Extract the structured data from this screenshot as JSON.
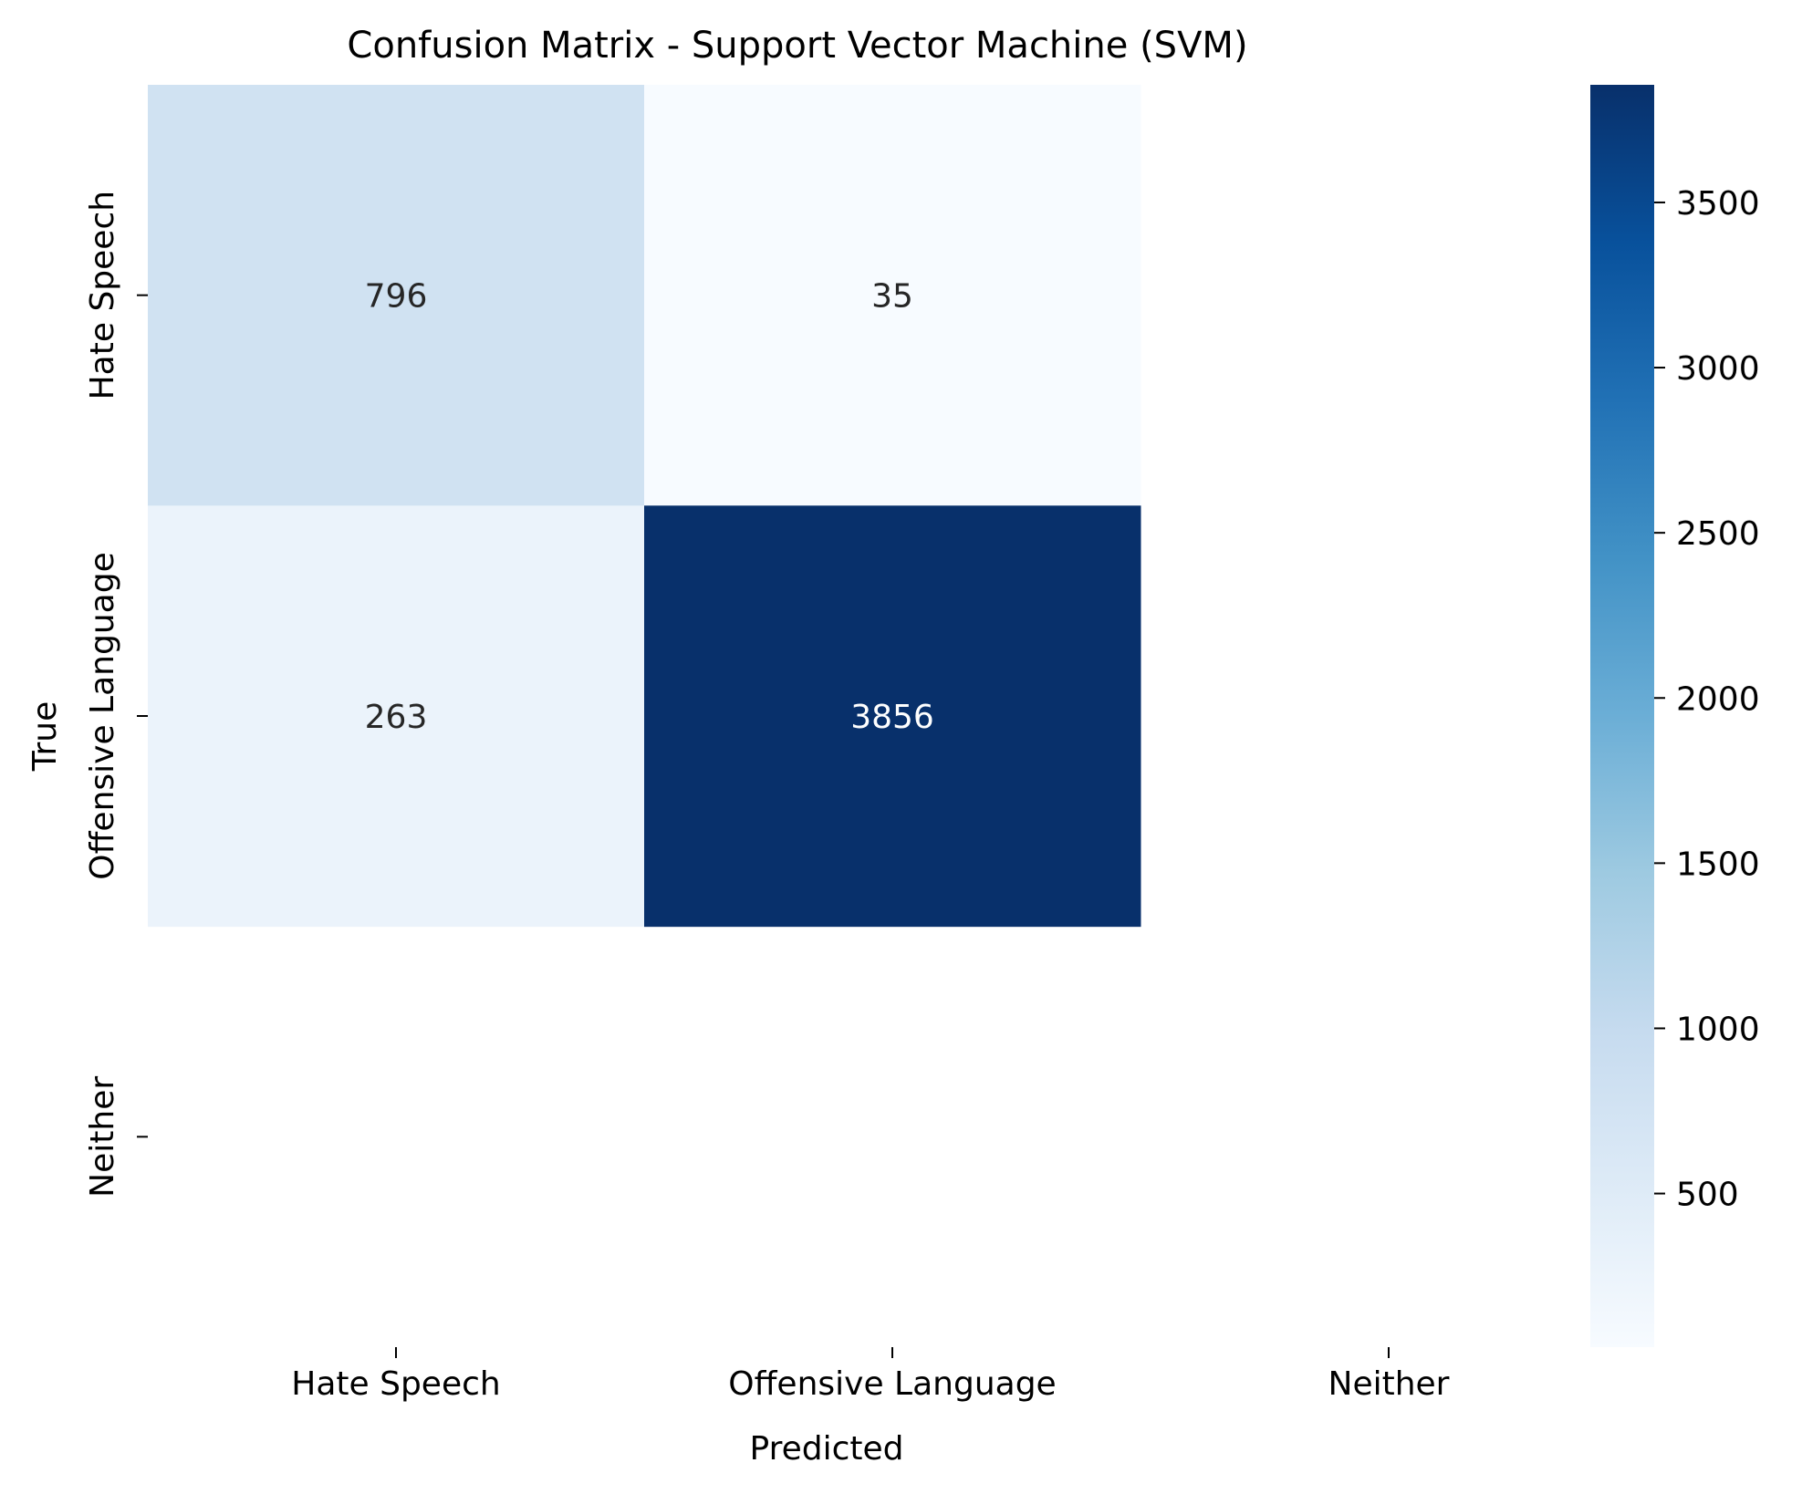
{
  "chart_data": {
    "type": "heatmap",
    "title": "Confusion Matrix - Support Vector Machine (SVM)",
    "xlabel": "Predicted",
    "ylabel": "True",
    "x_categories": [
      "Hate Speech",
      "Offensive Language",
      "Neither"
    ],
    "y_categories": [
      "Hate Speech",
      "Offensive Language",
      "Neither"
    ],
    "cells": [
      {
        "row": 0,
        "col": 0,
        "value": 796
      },
      {
        "row": 0,
        "col": 1,
        "value": 35
      },
      {
        "row": 1,
        "col": 0,
        "value": 263
      },
      {
        "row": 1,
        "col": 1,
        "value": 3856
      }
    ],
    "colormap": "Blues",
    "colorbar": {
      "vmin": 35,
      "vmax": 3856,
      "ticks": [
        500,
        1000,
        1500,
        2000,
        2500,
        3000,
        3500
      ]
    },
    "grid": false,
    "legend": "none"
  }
}
